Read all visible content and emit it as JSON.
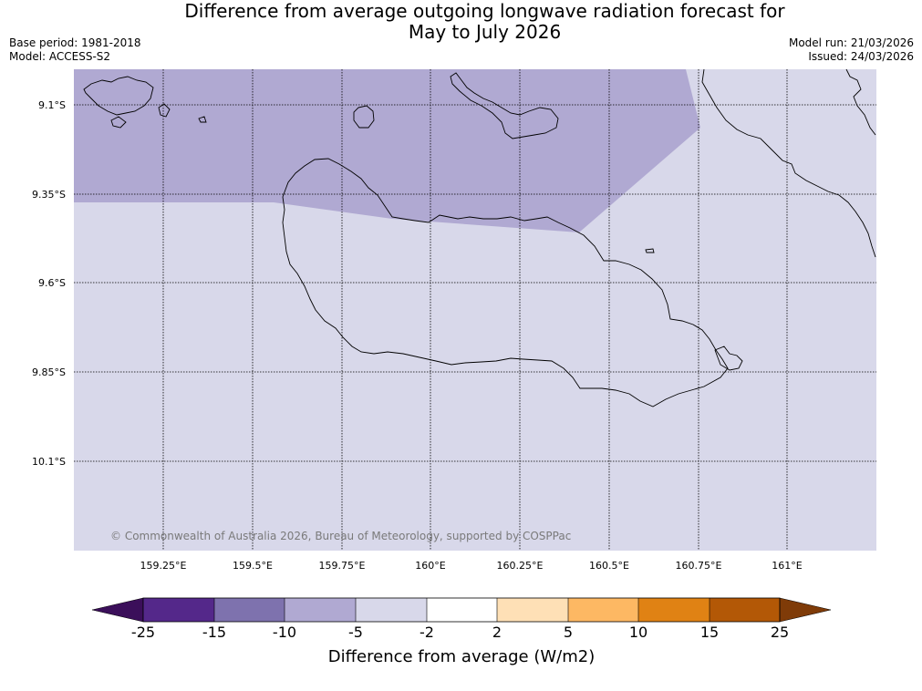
{
  "title_line1": "Difference from average outgoing longwave radiation forecast for",
  "title_line2": "May to July 2026",
  "base_period": "Base period: 1981-2018",
  "model": "Model: ACCESS-S2",
  "model_run": "Model run: 21/03/2026",
  "issued": "Issued: 24/03/2026",
  "lat_labels": [
    "9.1°S",
    "9.35°S",
    "9.6°S",
    "9.85°S",
    "10.1°S"
  ],
  "lon_labels": [
    "159.25°E",
    "159.5°E",
    "159.75°E",
    "160°E",
    "160.25°E",
    "160.5°E",
    "160.75°E",
    "161°E"
  ],
  "credit": "© Commonwealth of Australia 2026, Bureau of Meteorology, supported by COSPPac",
  "colorbar": {
    "title": "Difference from average (W/m2)",
    "tick_labels": [
      "-25",
      "-15",
      "-10",
      "-5",
      "-2",
      "2",
      "5",
      "10",
      "15",
      "25"
    ],
    "colors": [
      "#3b0f5a",
      "#54288a",
      "#7e72ae",
      "#b0a9d2",
      "#d8d8ea",
      "#ffffff",
      "#fee0b6",
      "#fdb863",
      "#e08214",
      "#b35806",
      "#7f3b08"
    ]
  },
  "legend_areas": {
    "northwest_band": "-10 to -5",
    "remaining_area": "-5 to -2"
  }
}
